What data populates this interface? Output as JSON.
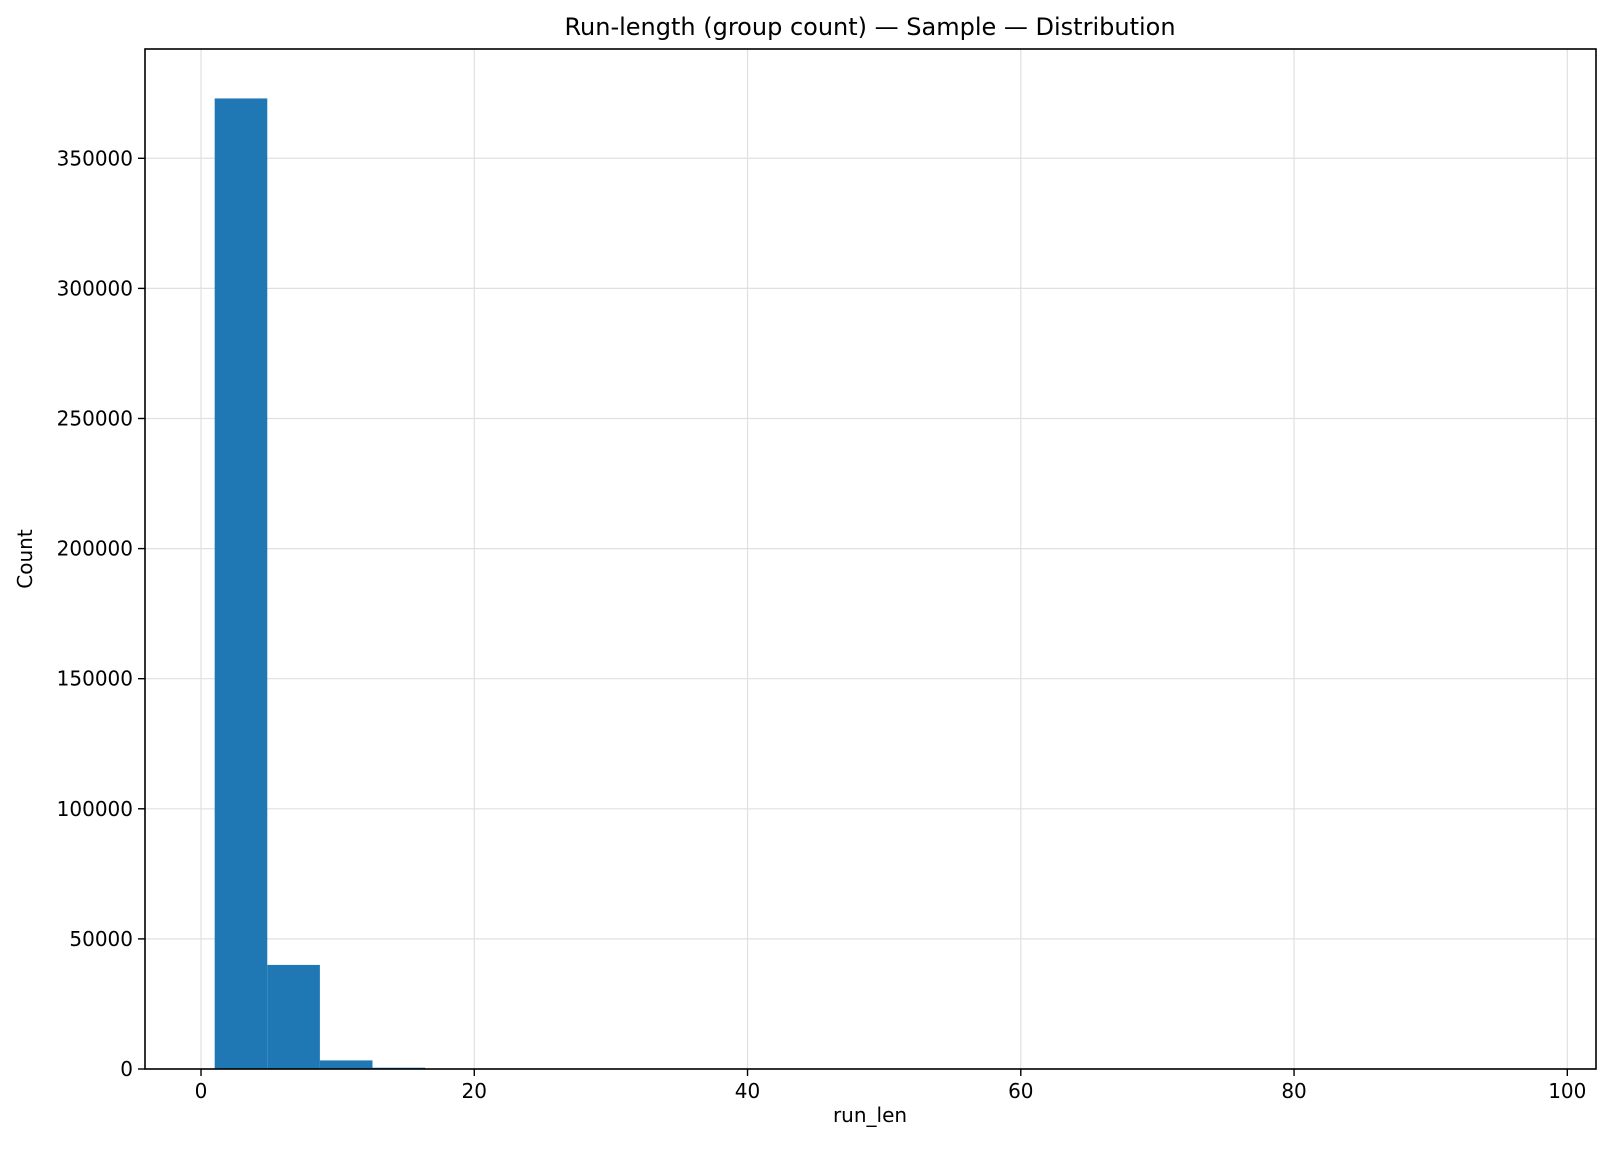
{
  "chart_data": {
    "type": "bar",
    "title": "Run-length (group count) — Sample — Distribution",
    "xlabel": "run_len",
    "ylabel": "Count",
    "xlim": [
      -4.1,
      102.1
    ],
    "ylim": [
      0,
      392000
    ],
    "xticks": [
      0,
      20,
      40,
      60,
      80,
      100
    ],
    "yticks": [
      0,
      50000,
      100000,
      150000,
      200000,
      250000,
      300000,
      350000
    ],
    "grid": true,
    "bins": [
      {
        "x0": 1.0,
        "x1": 4.85,
        "count": 373000
      },
      {
        "x0": 4.85,
        "x1": 8.7,
        "count": 40000
      },
      {
        "x0": 8.7,
        "x1": 12.55,
        "count": 3300
      },
      {
        "x0": 12.55,
        "x1": 16.4,
        "count": 500
      },
      {
        "x0": 16.4,
        "x1": 20.25,
        "count": 80
      },
      {
        "x0": 20.25,
        "x1": 24.1,
        "count": 15
      }
    ],
    "bar_color": "#1f77b4",
    "grid_color": "#e0e0e0"
  }
}
